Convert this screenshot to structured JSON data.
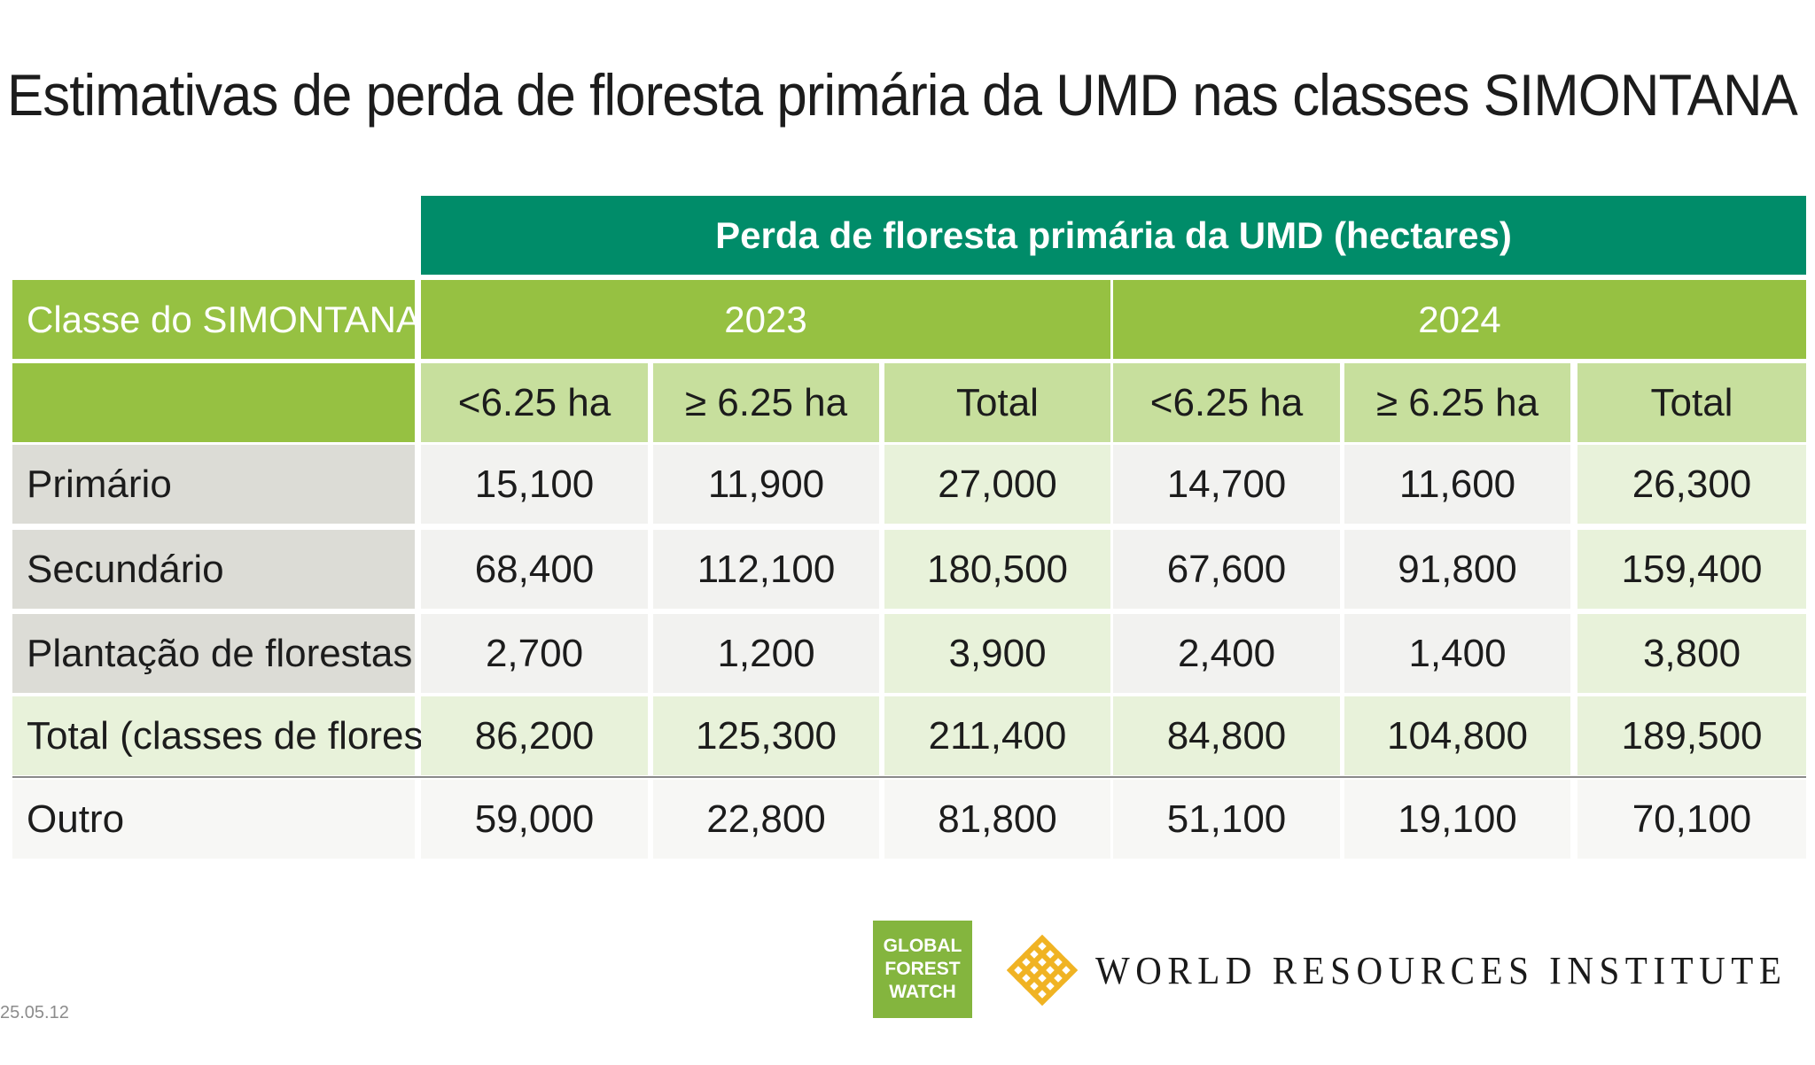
{
  "title": "Estimativas de perda de floresta primária da UMD nas classes SIMONTANA",
  "chart_data": {
    "type": "table",
    "title": "Estimativas de perda de floresta primária da UMD nas classes SIMONTANA",
    "header_top": "Perda de floresta primária da UMD (hectares)",
    "row_header": "Classe do SIMONTANA",
    "years": [
      "2023",
      "2024"
    ],
    "subheaders": [
      "<6.25 ha",
      "≥ 6.25 ha",
      "Total",
      "<6.25 ha",
      "≥ 6.25 ha",
      "Total"
    ],
    "rows": [
      {
        "label": "Primário",
        "values": [
          "15,100",
          "11,900",
          "27,000",
          "14,700",
          "11,600",
          "26,300"
        ]
      },
      {
        "label": "Secundário",
        "values": [
          "68,400",
          "112,100",
          "180,500",
          "67,600",
          "91,800",
          "159,400"
        ]
      },
      {
        "label": "Plantação de florestas",
        "values": [
          "2,700",
          "1,200",
          "3,900",
          "2,400",
          "1,400",
          "3,800"
        ]
      },
      {
        "label": "Total (classes de florestas)",
        "values": [
          "86,200",
          "125,300",
          "211,400",
          "84,800",
          "104,800",
          "189,500"
        ]
      },
      {
        "label": "Outro",
        "values": [
          "59,000",
          "22,800",
          "81,800",
          "51,100",
          "19,100",
          "70,100"
        ]
      }
    ]
  },
  "logos": {
    "gfw_lines": [
      "GLOBAL",
      "FOREST",
      "WATCH"
    ],
    "wri_text": "WORLD RESOURCES INSTITUTE"
  },
  "date_stamp": "25.05.12",
  "colors": {
    "header_dark_green": "#008c69",
    "header_green": "#96c142",
    "subheader_light_green": "#c7df9d",
    "label_gray": "#dcdcd6",
    "value_light": "#f2f2f0",
    "total_light_green": "#e8f2da",
    "wri_gold": "#f0b323"
  }
}
